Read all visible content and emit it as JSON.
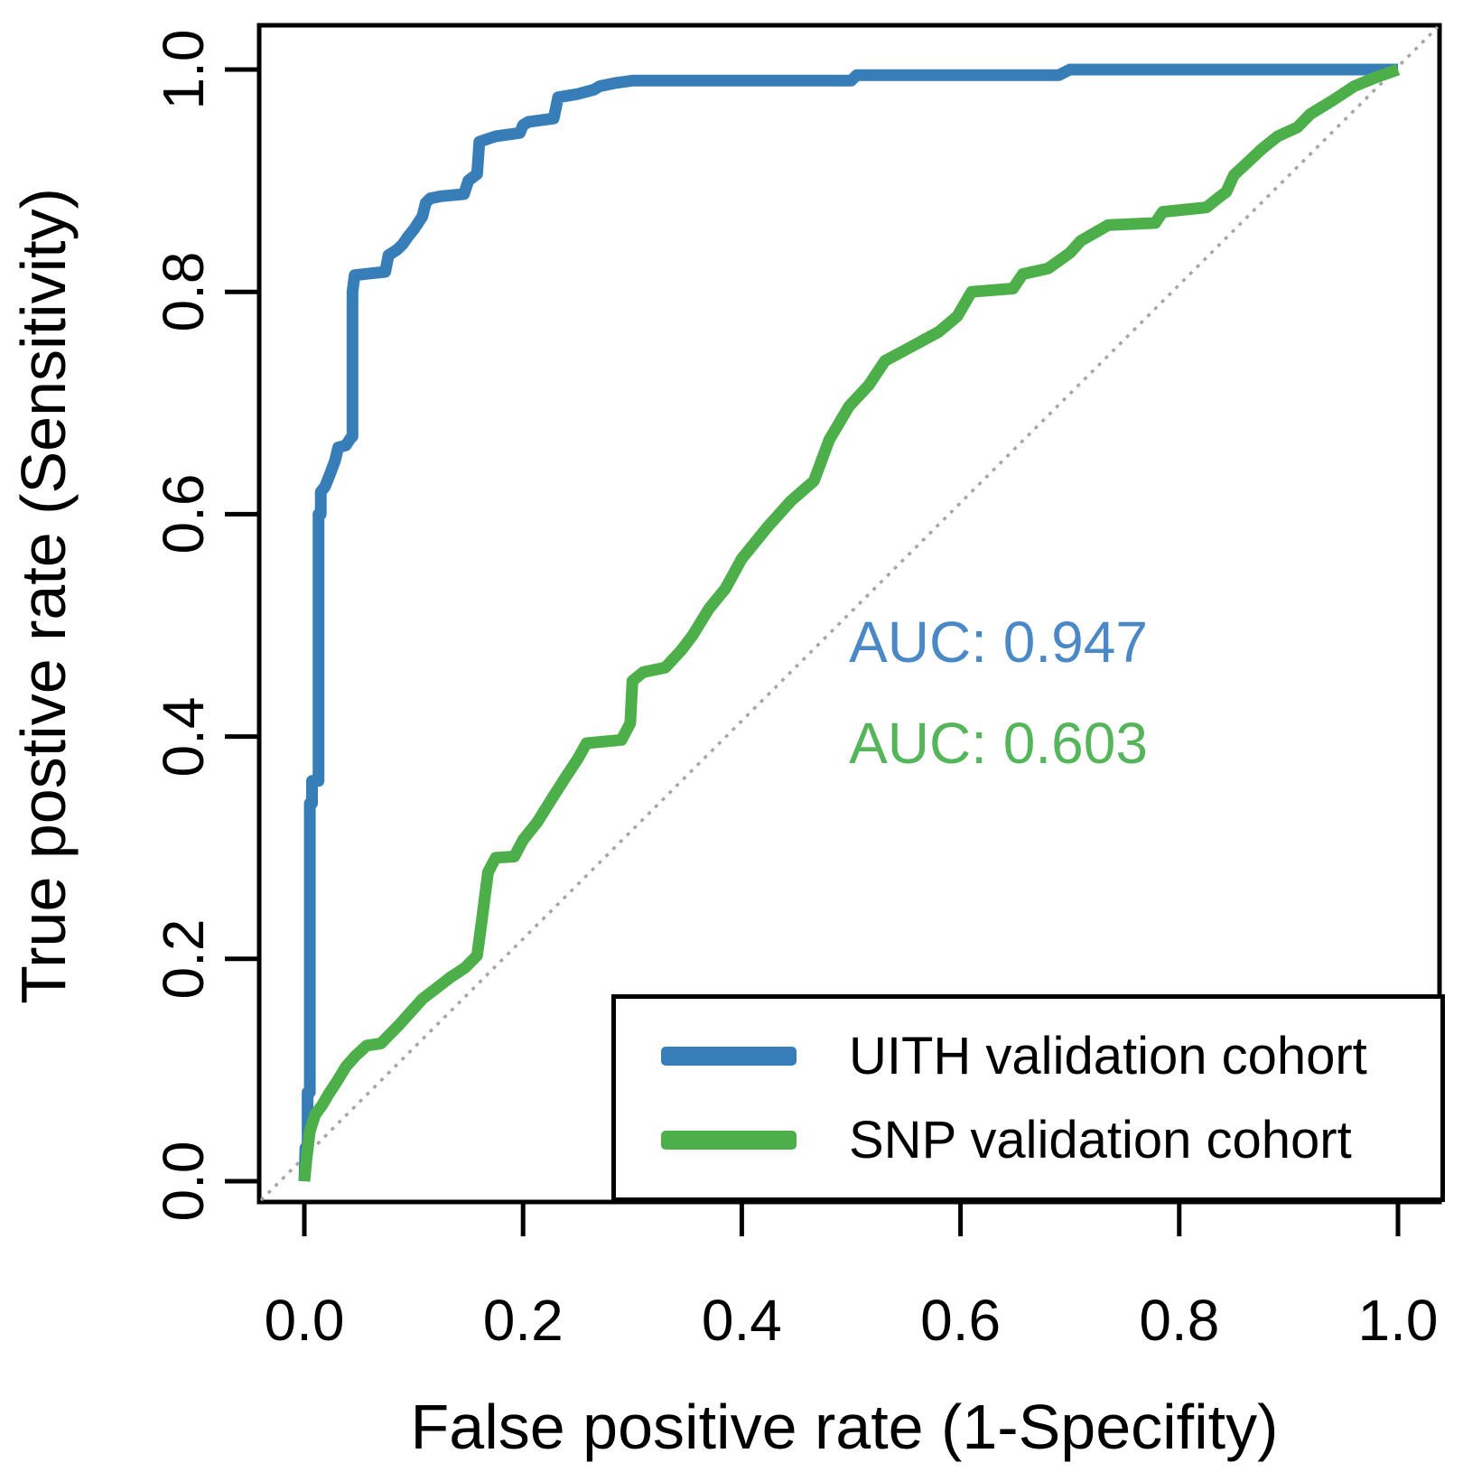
{
  "chart_data": {
    "type": "line",
    "subtype": "roc-curves",
    "title": "",
    "xlabel": "False positive rate (1-Specifity)",
    "ylabel": "True postive rate (Sensitivity)",
    "xlim": [
      0.0,
      1.0
    ],
    "ylim": [
      0.0,
      1.0
    ],
    "x_ticks": [
      "0.0",
      "0.2",
      "0.4",
      "0.6",
      "0.8",
      "1.0"
    ],
    "y_ticks": [
      "0.0",
      "0.2",
      "0.4",
      "0.6",
      "0.8",
      "1.0"
    ],
    "grid": false,
    "diagonal_reference_line": {
      "shown": true,
      "style": "dotted",
      "color": "#a6a6a6"
    },
    "legend_position": "bottom-right",
    "series": [
      {
        "name": "UITH validation cohort",
        "color": "#377eb8",
        "auc": 0.947,
        "points": [
          [
            0,
            0
          ],
          [
            0.001,
            0.03
          ],
          [
            0.003,
            0.03
          ],
          [
            0.003,
            0.08
          ],
          [
            0.005,
            0.08
          ],
          [
            0.005,
            0.34
          ],
          [
            0.007,
            0.34
          ],
          [
            0.007,
            0.36
          ],
          [
            0.013,
            0.36
          ],
          [
            0.013,
            0.6
          ],
          [
            0.015,
            0.6
          ],
          [
            0.015,
            0.62
          ],
          [
            0.019,
            0.625
          ],
          [
            0.023,
            0.635
          ],
          [
            0.028,
            0.648
          ],
          [
            0.031,
            0.66
          ],
          [
            0.038,
            0.662
          ],
          [
            0.042,
            0.668
          ],
          [
            0.044,
            0.67
          ],
          [
            0.044,
            0.8
          ],
          [
            0.046,
            0.815
          ],
          [
            0.074,
            0.818
          ],
          [
            0.077,
            0.833
          ],
          [
            0.085,
            0.838
          ],
          [
            0.09,
            0.843
          ],
          [
            0.095,
            0.85
          ],
          [
            0.1,
            0.856
          ],
          [
            0.108,
            0.868
          ],
          [
            0.111,
            0.88
          ],
          [
            0.115,
            0.884
          ],
          [
            0.125,
            0.886
          ],
          [
            0.146,
            0.888
          ],
          [
            0.15,
            0.9
          ],
          [
            0.158,
            0.906
          ],
          [
            0.16,
            0.935
          ],
          [
            0.175,
            0.94
          ],
          [
            0.197,
            0.943
          ],
          [
            0.2,
            0.95
          ],
          [
            0.205,
            0.953
          ],
          [
            0.228,
            0.956
          ],
          [
            0.232,
            0.975
          ],
          [
            0.25,
            0.978
          ],
          [
            0.265,
            0.982
          ],
          [
            0.27,
            0.985
          ],
          [
            0.285,
            0.988
          ],
          [
            0.3,
            0.99
          ],
          [
            0.5,
            0.99
          ],
          [
            0.505,
            0.995
          ],
          [
            0.69,
            0.995
          ],
          [
            0.7,
            1.0
          ],
          [
            1.0,
            1.0
          ]
        ]
      },
      {
        "name": "SNP validation cohort",
        "color": "#4daf4a",
        "auc": 0.603,
        "points": [
          [
            0,
            0
          ],
          [
            0.002,
            0.02
          ],
          [
            0.005,
            0.045
          ],
          [
            0.01,
            0.06
          ],
          [
            0.016,
            0.068
          ],
          [
            0.022,
            0.078
          ],
          [
            0.03,
            0.09
          ],
          [
            0.038,
            0.103
          ],
          [
            0.047,
            0.113
          ],
          [
            0.057,
            0.122
          ],
          [
            0.07,
            0.124
          ],
          [
            0.078,
            0.132
          ],
          [
            0.087,
            0.141
          ],
          [
            0.097,
            0.152
          ],
          [
            0.108,
            0.164
          ],
          [
            0.12,
            0.173
          ],
          [
            0.133,
            0.183
          ],
          [
            0.147,
            0.192
          ],
          [
            0.158,
            0.203
          ],
          [
            0.163,
            0.24
          ],
          [
            0.168,
            0.278
          ],
          [
            0.175,
            0.291
          ],
          [
            0.192,
            0.292
          ],
          [
            0.2,
            0.307
          ],
          [
            0.213,
            0.323
          ],
          [
            0.225,
            0.342
          ],
          [
            0.238,
            0.362
          ],
          [
            0.25,
            0.38
          ],
          [
            0.258,
            0.394
          ],
          [
            0.29,
            0.397
          ],
          [
            0.298,
            0.412
          ],
          [
            0.3,
            0.45
          ],
          [
            0.31,
            0.458
          ],
          [
            0.33,
            0.462
          ],
          [
            0.345,
            0.478
          ],
          [
            0.355,
            0.491
          ],
          [
            0.37,
            0.515
          ],
          [
            0.385,
            0.533
          ],
          [
            0.4,
            0.56
          ],
          [
            0.424,
            0.589
          ],
          [
            0.445,
            0.612
          ],
          [
            0.466,
            0.63
          ],
          [
            0.48,
            0.667
          ],
          [
            0.498,
            0.697
          ],
          [
            0.516,
            0.716
          ],
          [
            0.531,
            0.738
          ],
          [
            0.55,
            0.748
          ],
          [
            0.58,
            0.764
          ],
          [
            0.597,
            0.778
          ],
          [
            0.61,
            0.8
          ],
          [
            0.648,
            0.803
          ],
          [
            0.657,
            0.816
          ],
          [
            0.68,
            0.821
          ],
          [
            0.7,
            0.835
          ],
          [
            0.71,
            0.846
          ],
          [
            0.735,
            0.86
          ],
          [
            0.778,
            0.862
          ],
          [
            0.785,
            0.872
          ],
          [
            0.825,
            0.876
          ],
          [
            0.835,
            0.884
          ],
          [
            0.843,
            0.89
          ],
          [
            0.85,
            0.905
          ],
          [
            0.862,
            0.916
          ],
          [
            0.875,
            0.928
          ],
          [
            0.89,
            0.94
          ],
          [
            0.908,
            0.948
          ],
          [
            0.92,
            0.96
          ],
          [
            0.94,
            0.972
          ],
          [
            0.96,
            0.985
          ],
          [
            0.98,
            0.993
          ],
          [
            1.0,
            1.0
          ]
        ]
      }
    ],
    "annotations": [
      {
        "text": "AUC: 0.947",
        "color": "#4a89c5",
        "x": 0.498,
        "y": 0.486
      },
      {
        "text": "AUC: 0.603",
        "color": "#55b55a",
        "x": 0.498,
        "y": 0.395
      }
    ]
  }
}
